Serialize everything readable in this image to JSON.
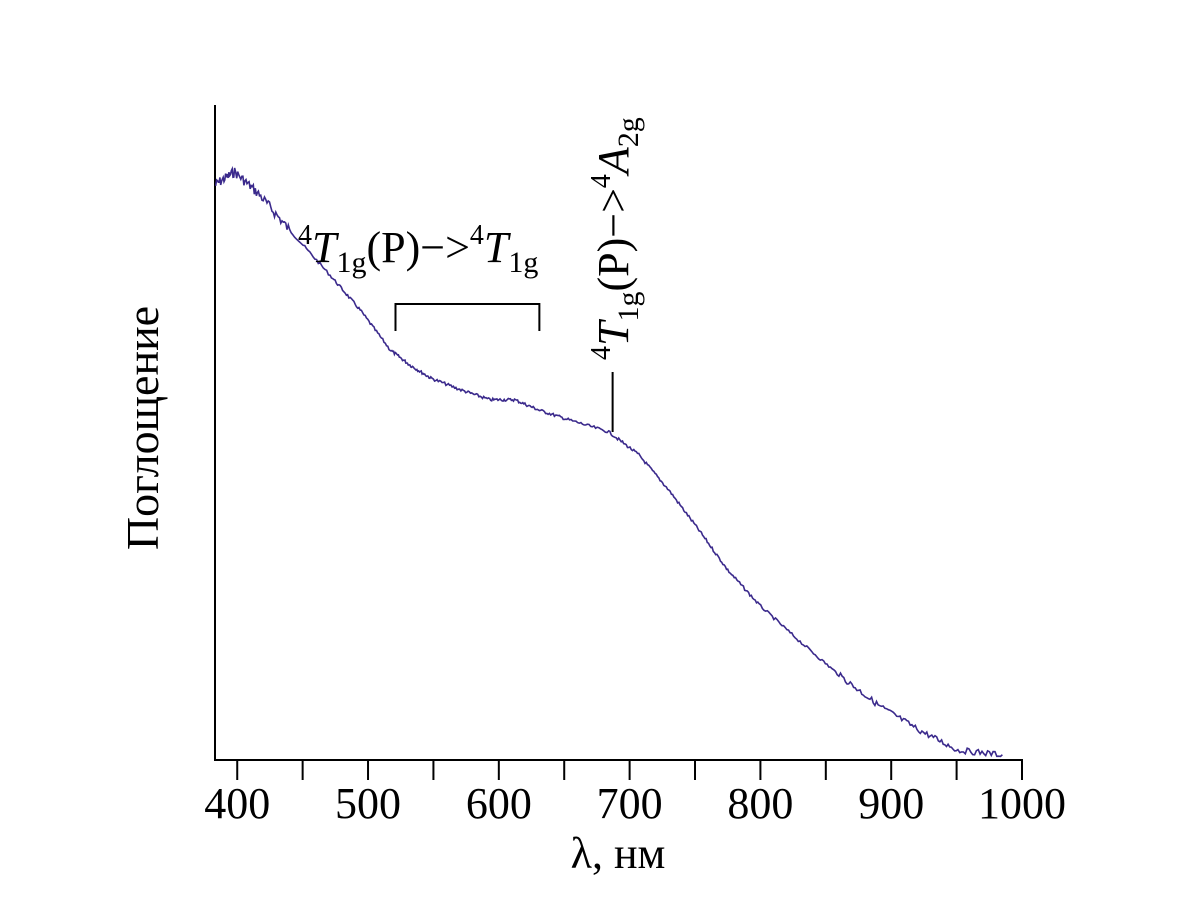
{
  "chart_data": {
    "type": "line",
    "xlabel": "λ, нм",
    "ylabel": "Поглощение",
    "xlim": [
      383,
      1000
    ],
    "ylim": [
      0,
      1
    ],
    "x_ticks": [
      400,
      500,
      600,
      700,
      800,
      900,
      1000
    ],
    "x_minor_step": 50,
    "y_ticks_shown": false,
    "grid": false,
    "line_color": "#3b2a8c",
    "series": [
      {
        "x": [
          383,
          398,
          417,
          440,
          471,
          494,
          517,
          532,
          548,
          571,
          593,
          612,
          631,
          654,
          684,
          707,
          730,
          753,
          775,
          799,
          829,
          860,
          890,
          921,
          951,
          985
        ],
        "y": [
          0.878,
          0.898,
          0.863,
          0.809,
          0.74,
          0.687,
          0.626,
          0.603,
          0.583,
          0.565,
          0.55,
          0.55,
          0.534,
          0.519,
          0.501,
          0.466,
          0.412,
          0.351,
          0.29,
          0.237,
          0.183,
          0.13,
          0.084,
          0.046,
          0.015,
          0.008
        ]
      }
    ],
    "annotations": [
      {
        "text_parts": [
          "4",
          "T",
          "1g",
          "(P)−>",
          "4",
          "T",
          "1g"
        ],
        "range_nm": [
          521,
          631
        ]
      },
      {
        "text_parts": [
          "4",
          "T",
          "1g",
          "(P)−>",
          "4",
          "A",
          "2g"
        ],
        "at_nm": 687
      }
    ]
  }
}
